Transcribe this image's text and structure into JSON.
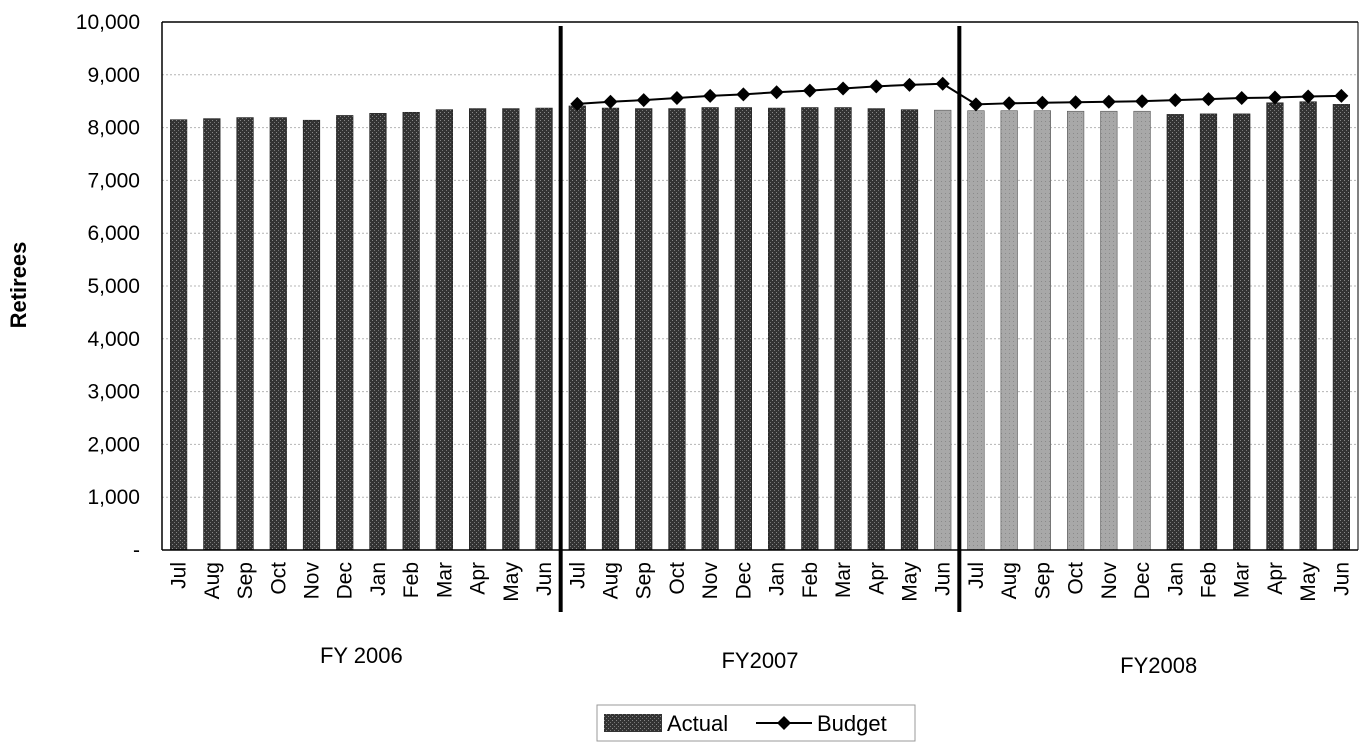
{
  "chart_data": {
    "type": "bar",
    "ylabel": "Retirees",
    "ylim": [
      0,
      10000
    ],
    "y_ticks": [
      "-",
      "1,000",
      "2,000",
      "3,000",
      "4,000",
      "5,000",
      "6,000",
      "7,000",
      "8,000",
      "9,000",
      "10,000"
    ],
    "grid": true,
    "legend_position": "bottom",
    "groups": [
      {
        "label": "FY 2006",
        "categories": [
          "Jul",
          "Aug",
          "Sep",
          "Oct",
          "Nov",
          "Dec",
          "Jan",
          "Feb",
          "Mar",
          "Apr",
          "May",
          "Jun"
        ],
        "actual": [
          8150,
          8170,
          8190,
          8190,
          8140,
          8230,
          8270,
          8290,
          8340,
          8360,
          8360,
          8370
        ],
        "projected": [
          false,
          false,
          false,
          false,
          false,
          false,
          false,
          false,
          false,
          false,
          false,
          false
        ],
        "budget": [
          null,
          null,
          null,
          null,
          null,
          null,
          null,
          null,
          null,
          null,
          null,
          null
        ]
      },
      {
        "label": "FY2007",
        "categories": [
          "Jul",
          "Aug",
          "Sep",
          "Oct",
          "Nov",
          "Dec",
          "Jan",
          "Feb",
          "Mar",
          "Apr",
          "May",
          "Jun"
        ],
        "actual": [
          8410,
          8370,
          8360,
          8360,
          8380,
          8380,
          8370,
          8380,
          8380,
          8360,
          8340,
          8330
        ],
        "projected": [
          false,
          false,
          false,
          false,
          false,
          false,
          false,
          false,
          false,
          false,
          false,
          true
        ],
        "budget": [
          8450,
          8490,
          8520,
          8560,
          8600,
          8630,
          8670,
          8700,
          8740,
          8780,
          8810,
          8830
        ]
      },
      {
        "label": "FY2008",
        "categories": [
          "Jul",
          "Aug",
          "Sep",
          "Oct",
          "Nov",
          "Dec",
          "Jan",
          "Feb",
          "Mar",
          "Apr",
          "May",
          "Jun"
        ],
        "actual": [
          8320,
          8320,
          8320,
          8310,
          8310,
          8310,
          8250,
          8260,
          8260,
          8470,
          8490,
          8440
        ],
        "projected": [
          true,
          true,
          true,
          true,
          true,
          true,
          false,
          false,
          false,
          false,
          false,
          false
        ],
        "budget": [
          8440,
          8460,
          8470,
          8480,
          8490,
          8500,
          8520,
          8540,
          8560,
          8570,
          8590,
          8600
        ]
      }
    ],
    "series": [
      {
        "name": "Actual",
        "style": "bar"
      },
      {
        "name": "Budget",
        "style": "line-diamond"
      }
    ]
  },
  "colors": {
    "actual_bar": "#3a3a3a",
    "projected_bar": "#a8a8a8",
    "budget_line": "#000000",
    "grid": "#b4b4b4",
    "frame": "#000000"
  }
}
